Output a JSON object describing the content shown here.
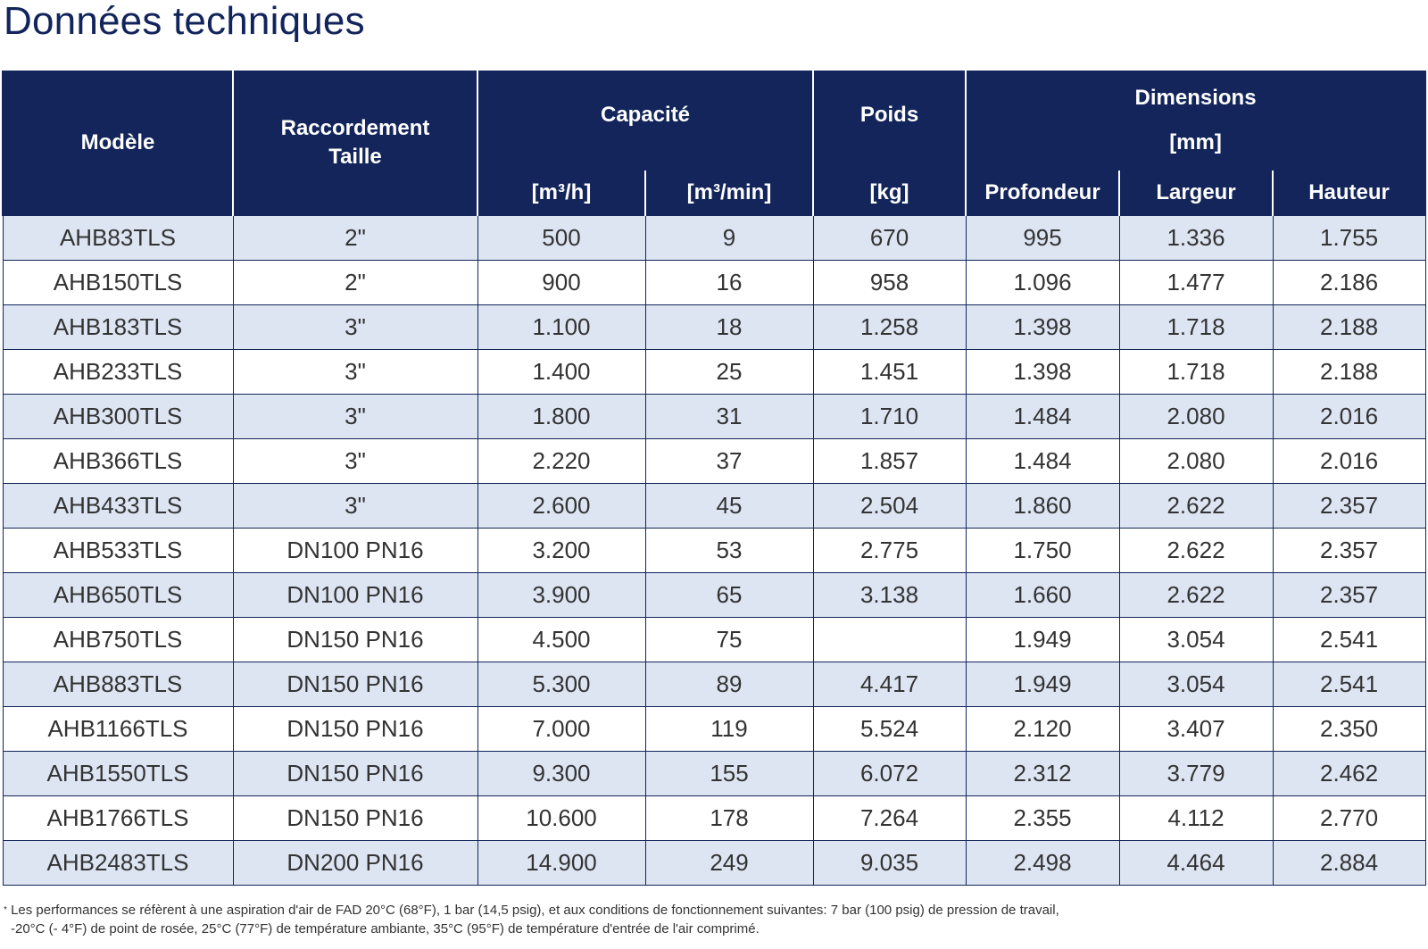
{
  "title": "Données techniques",
  "table": {
    "headers": {
      "model": "Modèle",
      "connection_l1": "Raccordement",
      "connection_l2": "Taille",
      "capacity": "Capacité",
      "capacity_unit_1": "[m³/h]",
      "capacity_unit_2": "[m³/min]",
      "weight": "Poids",
      "weight_unit": "[kg]",
      "dimensions": "Dimensions",
      "dimensions_unit": "[mm]",
      "depth": "Profondeur",
      "width": "Largeur",
      "height": "Hauteur"
    },
    "rows": [
      [
        "AHB83TLS",
        "2\"",
        "500",
        "9",
        "670",
        "995",
        "1.336",
        "1.755"
      ],
      [
        "AHB150TLS",
        "2\"",
        "900",
        "16",
        "958",
        "1.096",
        "1.477",
        "2.186"
      ],
      [
        "AHB183TLS",
        "3\"",
        "1.100",
        "18",
        "1.258",
        "1.398",
        "1.718",
        "2.188"
      ],
      [
        "AHB233TLS",
        "3\"",
        "1.400",
        "25",
        "1.451",
        "1.398",
        "1.718",
        "2.188"
      ],
      [
        "AHB300TLS",
        "3\"",
        "1.800",
        "31",
        "1.710",
        "1.484",
        "2.080",
        "2.016"
      ],
      [
        "AHB366TLS",
        "3\"",
        "2.220",
        "37",
        "1.857",
        "1.484",
        "2.080",
        "2.016"
      ],
      [
        "AHB433TLS",
        "3\"",
        "2.600",
        "45",
        "2.504",
        "1.860",
        "2.622",
        "2.357"
      ],
      [
        "AHB533TLS",
        "DN100 PN16",
        "3.200",
        "53",
        "2.775",
        "1.750",
        "2.622",
        "2.357"
      ],
      [
        "AHB650TLS",
        "DN100 PN16",
        "3.900",
        "65",
        "3.138",
        "1.660",
        "2.622",
        "2.357"
      ],
      [
        "AHB750TLS",
        "DN150 PN16",
        "4.500",
        "75",
        "",
        "1.949",
        "3.054",
        "2.541"
      ],
      [
        "AHB883TLS",
        "DN150 PN16",
        "5.300",
        "89",
        "4.417",
        "1.949",
        "3.054",
        "2.541"
      ],
      [
        "AHB1166TLS",
        "DN150 PN16",
        "7.000",
        "119",
        "5.524",
        "2.120",
        "3.407",
        "2.350"
      ],
      [
        "AHB1550TLS",
        "DN150 PN16",
        "9.300",
        "155",
        "6.072",
        "2.312",
        "3.779",
        "2.462"
      ],
      [
        "AHB1766TLS",
        "DN150 PN16",
        "10.600",
        "178",
        "7.264",
        "2.355",
        "4.112",
        "2.770"
      ],
      [
        "AHB2483TLS",
        "DN200 PN16",
        "14.900",
        "249",
        "9.035",
        "2.498",
        "4.464",
        "2.884"
      ]
    ]
  },
  "footnote": {
    "marker": "*",
    "line1": "Les performances se réfèrent à une aspiration d'air de FAD 20°C (68°F), 1 bar (14,5 psig), et aux conditions de fonctionnement suivantes: 7 bar (100 psig) de pression de travail,",
    "line2": "-20°C (- 4°F) de point de rosée, 25°C (77°F) de température ambiante, 35°C (95°F) de température d'entrée de l'air comprimé."
  },
  "colors": {
    "header_bg": "#13255a",
    "title_text": "#12245c",
    "row_alt_bg": "#dde5f3"
  }
}
